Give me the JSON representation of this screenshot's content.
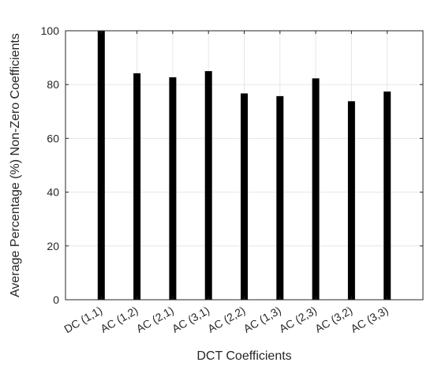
{
  "chart_data": {
    "type": "bar",
    "title": "",
    "xlabel": "DCT Coefficients",
    "ylabel": "Average Percentage (%) Non-Zero Coefficients",
    "categories": [
      "DC (1,1)",
      "AC (1,2)",
      "AC (2,1)",
      "AC (3,1)",
      "AC (2,2)",
      "AC (1,3)",
      "AC (2,3)",
      "AC (3,2)",
      "AC (3,3)"
    ],
    "values": [
      100,
      84.2,
      82.7,
      85.0,
      76.7,
      75.7,
      82.3,
      73.8,
      77.4
    ],
    "ylim": [
      0,
      100
    ],
    "yticks": [
      0,
      20,
      40,
      60,
      80,
      100
    ],
    "grid": true,
    "bar_color": "#000000",
    "grid_color": "#e6e6e6",
    "axis_color": "#262626"
  }
}
